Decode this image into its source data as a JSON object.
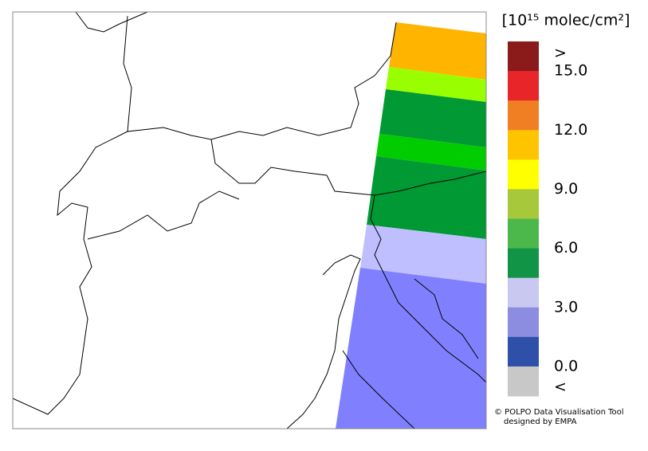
{
  "colorbar": {
    "label": "[10¹⁵ molec/cm²]",
    "colors": [
      "#8b1a1a",
      "#e8262a",
      "#f07f24",
      "#ffc400",
      "#ffff00",
      "#a6c83a",
      "#4cb84c",
      "#129447",
      "#c8c8f0",
      "#8c8ce0",
      "#2e50a8",
      "#c8c8c8"
    ],
    "labels": [
      ">",
      "15.0",
      "12.0",
      "9.0",
      "6.0",
      "3.0",
      "0.0",
      "<"
    ]
  },
  "credit": [
    "© POLPO Data Visualisation Tool",
    "designed by EMPA"
  ]
}
